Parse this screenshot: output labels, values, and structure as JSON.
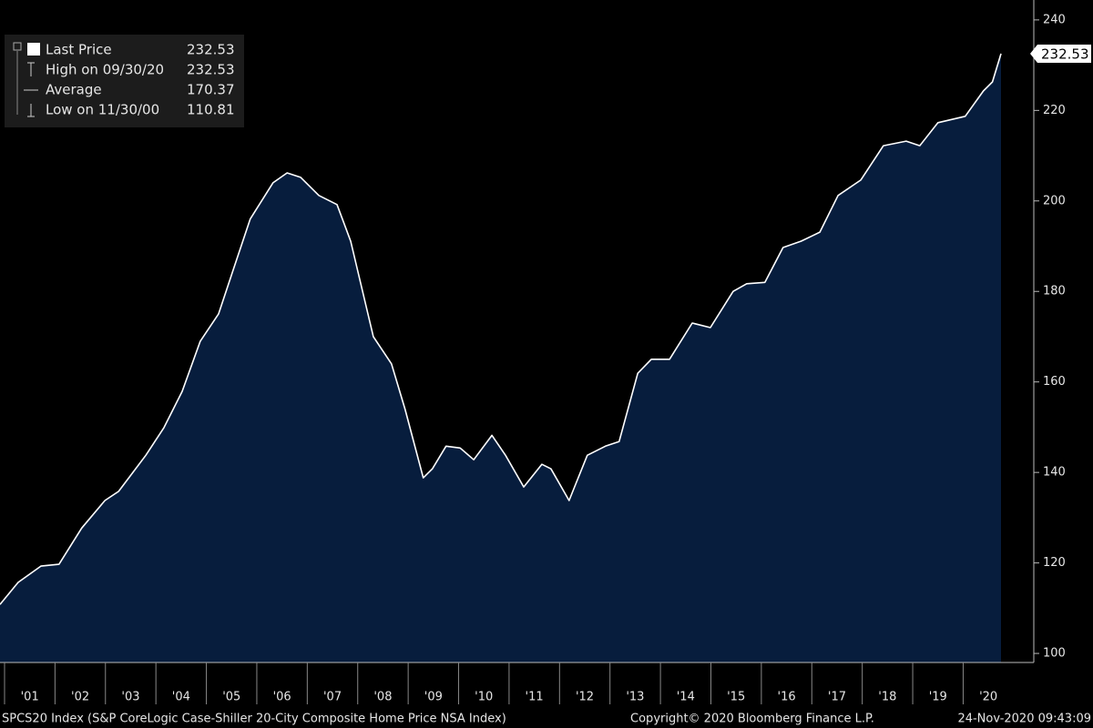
{
  "chart_data": {
    "type": "area",
    "footer_left": "SPCS20 Index (S&P CoreLogic Case-Shiller 20-City Composite Home Price NSA Index)",
    "footer_center": "Copyright© 2020 Bloomberg Finance L.P.",
    "footer_right": "24-Nov-2020 09:43:09",
    "stats": [
      {
        "label": "Last Price",
        "value": 232.53
      },
      {
        "label": "High on 09/30/20",
        "value": 232.53
      },
      {
        "label": "Average",
        "value": 170.37
      },
      {
        "label": "Low on 11/30/00",
        "value": 110.81
      }
    ],
    "x": [
      2000.91,
      2001.27,
      2001.72,
      2002.08,
      2002.53,
      2002.99,
      2003.26,
      2003.8,
      2004.16,
      2004.52,
      2004.88,
      2005.24,
      2005.51,
      2005.87,
      2006.32,
      2006.6,
      2006.87,
      2007.23,
      2007.59,
      2007.86,
      2008.31,
      2008.67,
      2008.94,
      2009.3,
      2009.48,
      2009.75,
      2010.03,
      2010.3,
      2010.66,
      2010.93,
      2011.29,
      2011.65,
      2011.83,
      2012.19,
      2012.55,
      2012.91,
      2013.18,
      2013.55,
      2013.82,
      2014.18,
      2014.63,
      2014.99,
      2015.44,
      2015.71,
      2016.07,
      2016.43,
      2016.79,
      2017.16,
      2017.52,
      2017.97,
      2018.42,
      2018.87,
      2019.14,
      2019.5,
      2020.04,
      2020.4,
      2020.58,
      2020.75
    ],
    "series": [
      {
        "name": "Last Price",
        "color": "#ffffff",
        "fill": "#071d3d",
        "values": [
          110.81,
          115.7,
          119.3,
          119.7,
          127.7,
          133.8,
          135.8,
          143.8,
          149.9,
          157.9,
          169,
          175,
          184,
          196,
          204,
          206.2,
          205.2,
          201.2,
          199.2,
          191.1,
          170,
          164,
          153.9,
          138.8,
          140.8,
          145.8,
          145.4,
          142.8,
          148.2,
          143.8,
          136.8,
          141.8,
          140.8,
          133.8,
          143.8,
          145.8,
          146.8,
          161.9,
          165,
          165,
          173,
          172,
          180,
          181.7,
          182,
          189.7,
          191.1,
          193.1,
          201.2,
          204.6,
          212.2,
          213.2,
          212.2,
          217.3,
          218.7,
          224.3,
          226.3,
          232.53
        ]
      }
    ],
    "xlim": [
      2000.91,
      2021.4
    ],
    "xticks": [
      {
        "value": 2001,
        "label": "'01"
      },
      {
        "value": 2002,
        "label": "'02"
      },
      {
        "value": 2003,
        "label": "'03"
      },
      {
        "value": 2004,
        "label": "'04"
      },
      {
        "value": 2005,
        "label": "'05"
      },
      {
        "value": 2006,
        "label": "'06"
      },
      {
        "value": 2007,
        "label": "'07"
      },
      {
        "value": 2008,
        "label": "'08"
      },
      {
        "value": 2009,
        "label": "'09"
      },
      {
        "value": 2010,
        "label": "'10"
      },
      {
        "value": 2011,
        "label": "'11"
      },
      {
        "value": 2012,
        "label": "'12"
      },
      {
        "value": 2013,
        "label": "'13"
      },
      {
        "value": 2014,
        "label": "'14"
      },
      {
        "value": 2015,
        "label": "'15"
      },
      {
        "value": 2016,
        "label": "'16"
      },
      {
        "value": 2017,
        "label": "'17"
      },
      {
        "value": 2018,
        "label": "'18"
      },
      {
        "value": 2019,
        "label": "'19"
      },
      {
        "value": 2020,
        "label": "'20"
      }
    ],
    "ylim": [
      98,
      244.4
    ],
    "yticks": [
      100,
      120,
      140,
      160,
      180,
      200,
      220,
      240
    ]
  }
}
